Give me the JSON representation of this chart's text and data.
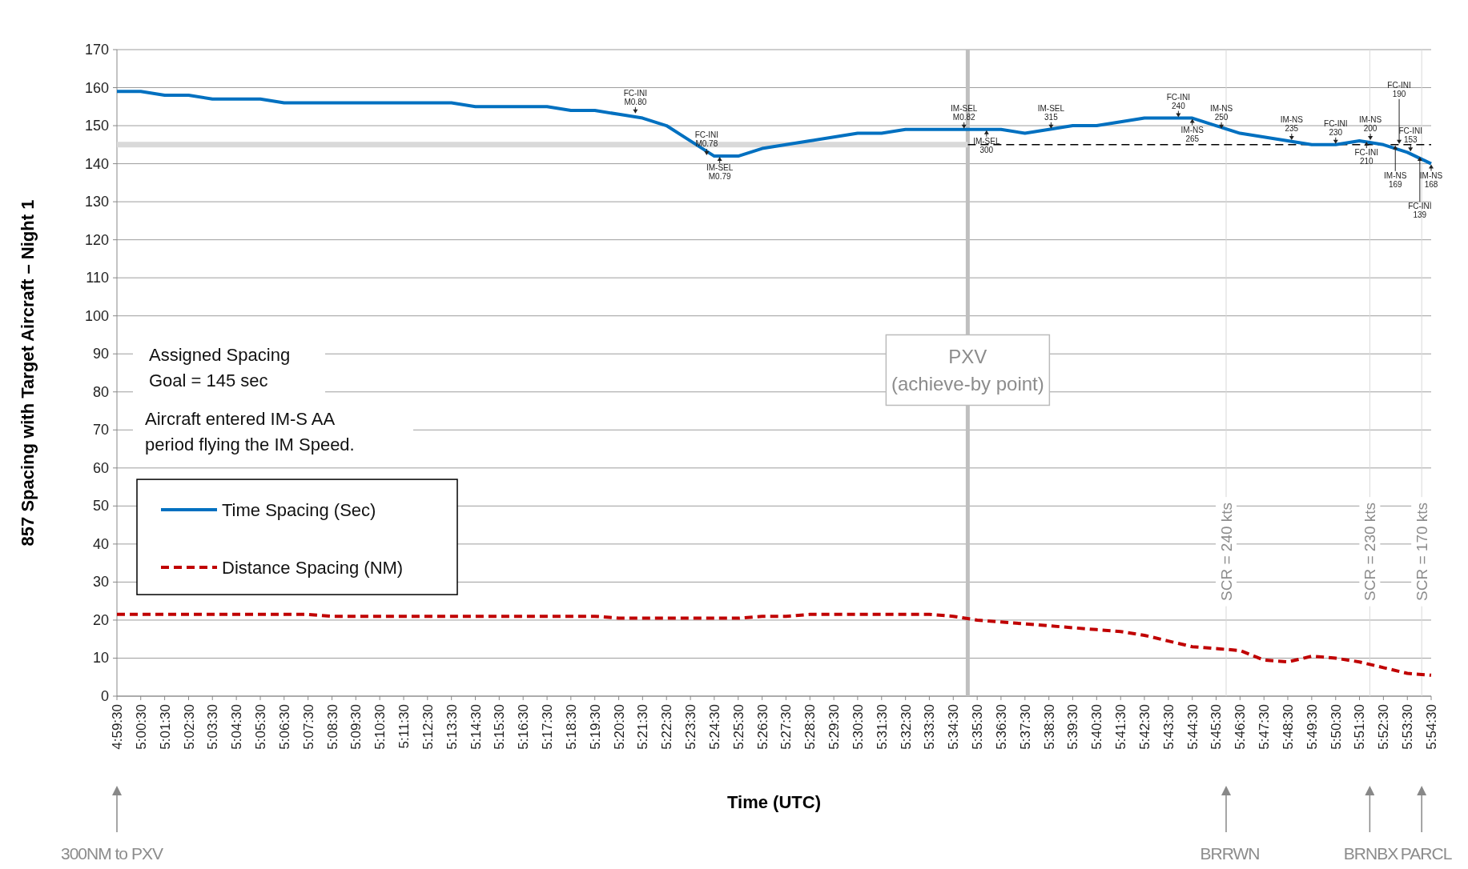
{
  "chart_data": {
    "type": "line",
    "xlabel": "Time (UTC)",
    "ylabel": "857 Spacing with Target Aircraft – Night 1",
    "x": [
      4.9917,
      5.0083,
      5.025,
      5.0417,
      5.0583,
      5.075,
      5.0917,
      5.1083,
      5.125,
      5.1417,
      5.1583,
      5.175,
      5.1917,
      5.2083,
      5.225,
      5.2417,
      5.2583,
      5.275,
      5.2917,
      5.3083,
      5.325,
      5.3417,
      5.3583,
      5.375,
      5.3917,
      5.4083,
      5.425,
      5.4417,
      5.4583,
      5.475,
      5.4917,
      5.5083,
      5.525,
      5.5417,
      5.5583,
      5.575,
      5.5917,
      5.6083,
      5.625,
      5.6417,
      5.6583,
      5.675,
      5.6917,
      5.7083,
      5.725,
      5.7417,
      5.7583,
      5.775,
      5.7917,
      5.8083,
      5.825,
      5.8417,
      5.8583,
      5.875,
      5.8917,
      5.9083
    ],
    "series": [
      {
        "name": "Time Spacing (Sec)",
        "color": "#0070c0",
        "line_style": "solid",
        "values": [
          159,
          159,
          158,
          158,
          157,
          157,
          157,
          156,
          156,
          156,
          156,
          156,
          156,
          156,
          156,
          155,
          155,
          155,
          155,
          154,
          154,
          153,
          152,
          150,
          146,
          142,
          142,
          144,
          145,
          146,
          147,
          148,
          148,
          149,
          149,
          149,
          149,
          149,
          148,
          149,
          150,
          150,
          151,
          152,
          152,
          152,
          150,
          148,
          147,
          146,
          145,
          145,
          146,
          145,
          143,
          140
        ]
      },
      {
        "name": "Distance Spacing (NM)",
        "color": "#c00000",
        "line_style": "dashed",
        "values": [
          21.5,
          21.5,
          21.5,
          21.5,
          21.5,
          21.5,
          21.5,
          21.5,
          21.5,
          21,
          21,
          21,
          21,
          21,
          21,
          21,
          21,
          21,
          21,
          21,
          21,
          20.5,
          20.5,
          20.5,
          20.5,
          20.5,
          20.5,
          21,
          21,
          21.5,
          21.5,
          21.5,
          21.5,
          21.5,
          21.5,
          21,
          20,
          19.5,
          19,
          18.5,
          18,
          17.5,
          17,
          16,
          14.5,
          13,
          12.5,
          12,
          9.5,
          9,
          10.5,
          10,
          9,
          7.5,
          6,
          5.5
        ]
      },
      {
        "color": "#d9d9d9",
        "line_style": "solid",
        "x": [
          4.9917,
          5.5851
        ],
        "values": [
          145,
          145
        ]
      },
      {
        "color": "#000000",
        "line_style": "dashed",
        "x": [
          5.5851,
          5.9083
        ],
        "values": [
          145,
          145
        ]
      }
    ],
    "xlim": [
      4.9917,
      5.9083
    ],
    "xticks": [
      {
        "value": 4.9917,
        "label": "4:59:30"
      },
      {
        "value": 5.0083,
        "label": "5:00:30"
      },
      {
        "value": 5.025,
        "label": "5:01:30"
      },
      {
        "value": 5.0417,
        "label": "5:02:30"
      },
      {
        "value": 5.0583,
        "label": "5:03:30"
      },
      {
        "value": 5.075,
        "label": "5:04:30"
      },
      {
        "value": 5.0917,
        "label": "5:05:30"
      },
      {
        "value": 5.1083,
        "label": "5:06:30"
      },
      {
        "value": 5.125,
        "label": "5:07:30"
      },
      {
        "value": 5.1417,
        "label": "5:08:30"
      },
      {
        "value": 5.1583,
        "label": "5:09:30"
      },
      {
        "value": 5.175,
        "label": "5:10:30"
      },
      {
        "value": 5.1917,
        "label": "5:11:30"
      },
      {
        "value": 5.2083,
        "label": "5:12:30"
      },
      {
        "value": 5.225,
        "label": "5:13:30"
      },
      {
        "value": 5.2417,
        "label": "5:14:30"
      },
      {
        "value": 5.2583,
        "label": "5:15:30"
      },
      {
        "value": 5.275,
        "label": "5:16:30"
      },
      {
        "value": 5.2917,
        "label": "5:17:30"
      },
      {
        "value": 5.3083,
        "label": "5:18:30"
      },
      {
        "value": 5.325,
        "label": "5:19:30"
      },
      {
        "value": 5.3417,
        "label": "5:20:30"
      },
      {
        "value": 5.3583,
        "label": "5:21:30"
      },
      {
        "value": 5.375,
        "label": "5:22:30"
      },
      {
        "value": 5.3917,
        "label": "5:23:30"
      },
      {
        "value": 5.4083,
        "label": "5:24:30"
      },
      {
        "value": 5.425,
        "label": "5:25:30"
      },
      {
        "value": 5.4417,
        "label": "5:26:30"
      },
      {
        "value": 5.4583,
        "label": "5:27:30"
      },
      {
        "value": 5.475,
        "label": "5:28:30"
      },
      {
        "value": 5.4917,
        "label": "5:29:30"
      },
      {
        "value": 5.5083,
        "label": "5:30:30"
      },
      {
        "value": 5.525,
        "label": "5:31:30"
      },
      {
        "value": 5.5417,
        "label": "5:32:30"
      },
      {
        "value": 5.5583,
        "label": "5:33:30"
      },
      {
        "value": 5.575,
        "label": "5:34:30"
      },
      {
        "value": 5.5917,
        "label": "5:35:30"
      },
      {
        "value": 5.6083,
        "label": "5:36:30"
      },
      {
        "value": 5.625,
        "label": "5:37:30"
      },
      {
        "value": 5.6417,
        "label": "5:38:30"
      },
      {
        "value": 5.6583,
        "label": "5:39:30"
      },
      {
        "value": 5.675,
        "label": "5:40:30"
      },
      {
        "value": 5.6917,
        "label": "5:41:30"
      },
      {
        "value": 5.7083,
        "label": "5:42:30"
      },
      {
        "value": 5.725,
        "label": "5:43:30"
      },
      {
        "value": 5.7417,
        "label": "5:44:30"
      },
      {
        "value": 5.7583,
        "label": "5:45:30"
      },
      {
        "value": 5.775,
        "label": "5:46:30"
      },
      {
        "value": 5.7917,
        "label": "5:47:30"
      },
      {
        "value": 5.8083,
        "label": "5:48:30"
      },
      {
        "value": 5.825,
        "label": "5:49:30"
      },
      {
        "value": 5.8417,
        "label": "5:50:30"
      },
      {
        "value": 5.8583,
        "label": "5:51:30"
      },
      {
        "value": 5.875,
        "label": "5:52:30"
      },
      {
        "value": 5.8917,
        "label": "5:53:30"
      },
      {
        "value": 5.9083,
        "label": "5:54:30"
      }
    ],
    "ylim": [
      0,
      170
    ],
    "yticks": [
      0,
      10,
      20,
      30,
      40,
      50,
      60,
      70,
      80,
      90,
      100,
      110,
      120,
      130,
      140,
      150,
      160,
      170
    ],
    "grid": "y",
    "legend": "left",
    "ref_lines": [
      {
        "axis": "x",
        "value": 5.5851,
        "label": "PXV\n(achieve-by point)",
        "color": "#bfbfbf"
      },
      {
        "axis": "x",
        "value": 5.7653,
        "color": "#d9d9d9"
      },
      {
        "axis": "x",
        "value": 5.8655,
        "color": "#d9d9d9"
      },
      {
        "axis": "x",
        "value": 5.9017,
        "color": "#d9d9d9"
      }
    ],
    "annotations": [
      "Assigned Spacing\nGoal = 145 sec",
      "Aircraft entered IM-S AA\nperiod flying the IM Speed.",
      {
        "text": "FC-INI\nM0.80",
        "x": 5.3533,
        "y": 153
      },
      {
        "text": "FC-INI\nM0.78",
        "x": 5.403,
        "y": 142
      },
      {
        "text": "IM-SEL\nM0.79",
        "x": 5.4121,
        "y": 142
      },
      {
        "text": "IM-SEL\nM0.82",
        "x": 5.5825,
        "y": 149
      },
      {
        "text": "IM-SEL\n300",
        "x": 5.5982,
        "y": 149
      },
      {
        "text": "IM-SEL\n315",
        "x": 5.6432,
        "y": 149
      },
      {
        "text": "FC-INI\n240",
        "x": 5.732,
        "y": 152
      },
      {
        "text": "IM-NS\n265",
        "x": 5.7417,
        "y": 152
      },
      {
        "text": "IM-NS\n250",
        "x": 5.762,
        "y": 149
      },
      {
        "text": "IM-NS\n235",
        "x": 5.811,
        "y": 146
      },
      {
        "text": "FC-INI\n230",
        "x": 5.8417,
        "y": 145
      },
      {
        "text": "FC-INI\n210",
        "x": 5.8632,
        "y": 146
      },
      {
        "text": "IM-NS\n200",
        "x": 5.8659,
        "y": 146
      },
      {
        "text": "IM-NS\n169",
        "x": 5.8833,
        "y": 145
      },
      {
        "text": "FC-INI\n190",
        "x": 5.886,
        "y": 145
      },
      {
        "text": "FC-INI\n153",
        "x": 5.8939,
        "y": 143
      },
      {
        "text": "FC-INI\n139",
        "x": 5.9004,
        "y": 142
      },
      {
        "text": "IM-NS\n168",
        "x": 5.9083,
        "y": 140
      },
      "300NM to PXV",
      "BRRWN",
      "BRNBX",
      "PARCL",
      {
        "text": "SCR = 240 kts",
        "x": 5.7653,
        "y": 38
      },
      {
        "text": "SCR = 230 kts",
        "x": 5.8655,
        "y": 38
      },
      {
        "text": "SCR = 170 kts",
        "x": 5.9017,
        "y": 38
      }
    ]
  }
}
